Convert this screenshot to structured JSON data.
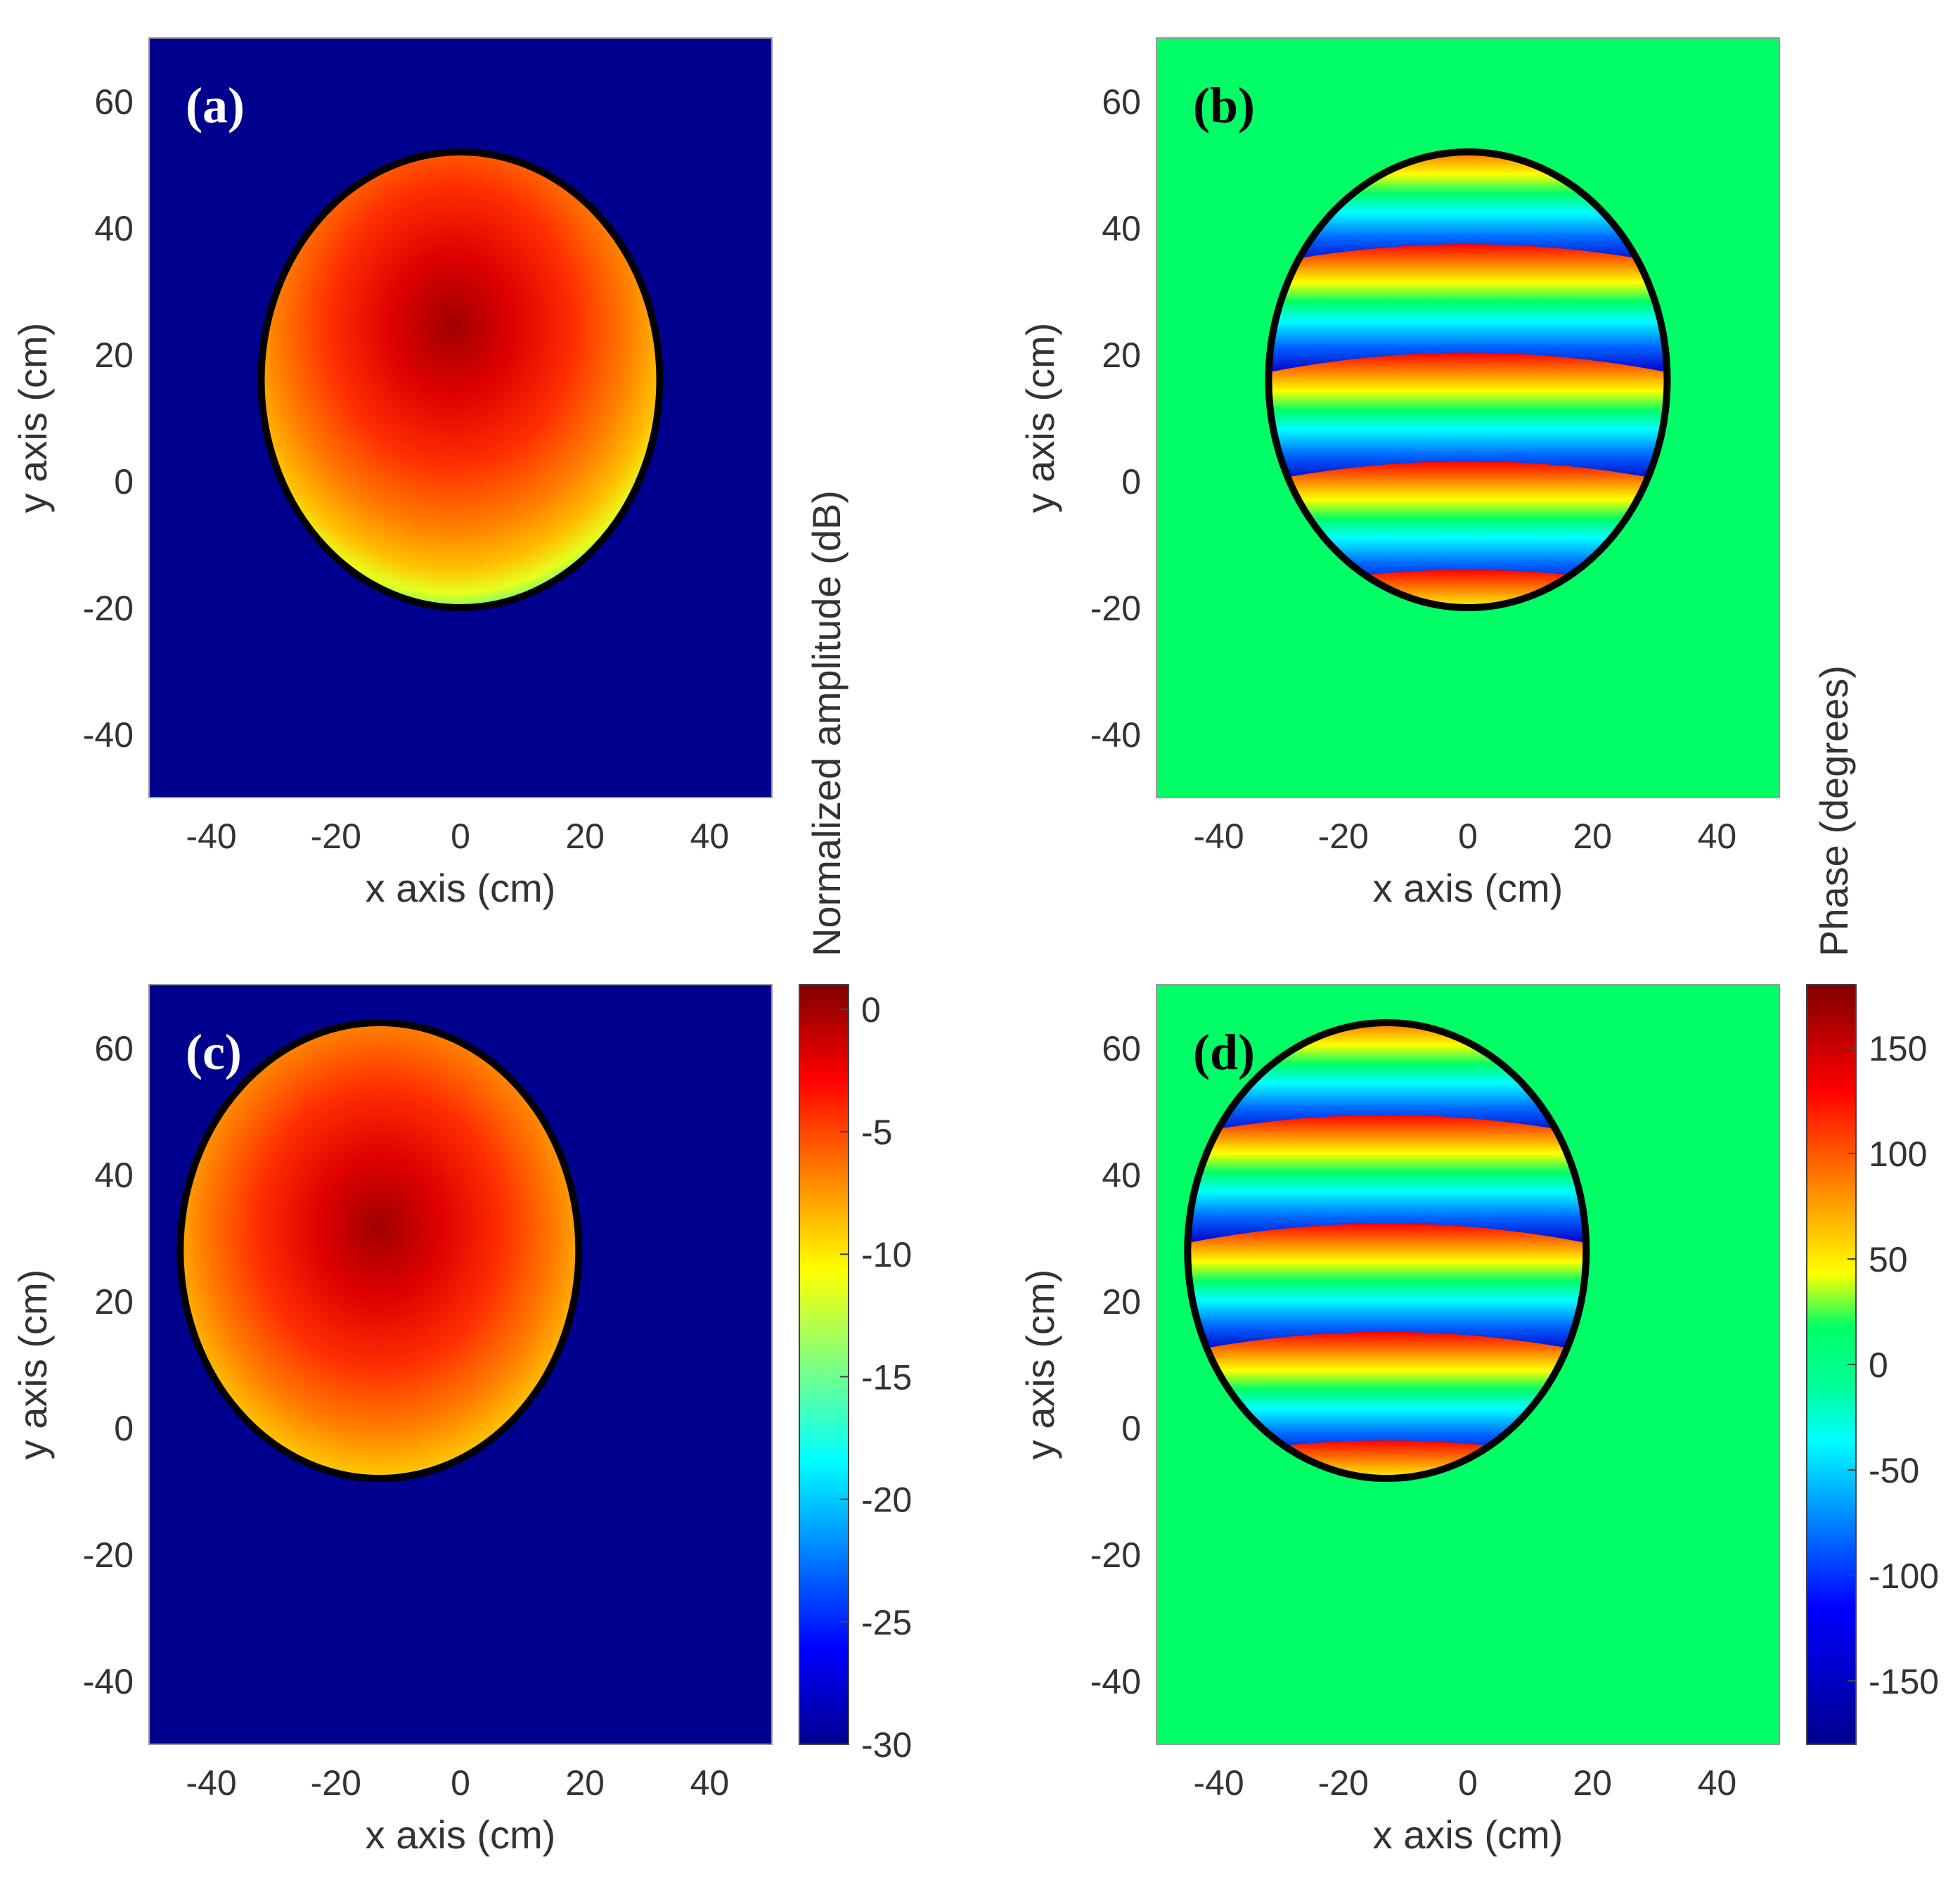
{
  "figure": {
    "panels": [
      {
        "id": "a",
        "label": "(a)",
        "quantity": "amplitude",
        "cx": 0,
        "cy": 16,
        "r": 32,
        "ry": 36,
        "xlabel": "x axis (cm)",
        "ylabel": "y axis (cm)"
      },
      {
        "id": "b",
        "label": "(b)",
        "quantity": "phase",
        "cx": 0,
        "cy": 16,
        "r": 32,
        "ry": 36,
        "xlabel": "x axis (cm)",
        "ylabel": "y axis (cm)"
      },
      {
        "id": "c",
        "label": "(c)",
        "quantity": "amplitude",
        "cx": -13,
        "cy": 28,
        "r": 32,
        "ry": 36,
        "xlabel": "x axis (cm)",
        "ylabel": "y axis (cm)"
      },
      {
        "id": "d",
        "label": "(d)",
        "quantity": "phase",
        "cx": -13,
        "cy": 28,
        "r": 32,
        "ry": 36,
        "xlabel": "x axis (cm)",
        "ylabel": "y axis (cm)"
      }
    ],
    "colorbars": {
      "amplitude": {
        "label": "Normalized amplitude (dB)",
        "range": [
          -30,
          1
        ],
        "ticks": [
          "0",
          "-5",
          "-10",
          "-15",
          "-20",
          "-25",
          "-30"
        ],
        "tick_values": [
          0,
          -5,
          -10,
          -15,
          -20,
          -25,
          -30
        ]
      },
      "phase": {
        "label": "Phase (degrees)",
        "range": [
          -180,
          180
        ],
        "ticks": [
          "150",
          "100",
          "50",
          "0",
          "-50",
          "-100",
          "-150"
        ],
        "tick_values": [
          150,
          100,
          50,
          0,
          -50,
          -100,
          -150
        ]
      }
    }
  },
  "chart_data": {
    "type": "heatmap",
    "title": "",
    "xlabel": "x axis (cm)",
    "ylabel": "y axis (cm)",
    "xlim": [
      -50,
      50
    ],
    "ylim": [
      -50,
      70
    ],
    "xticks": [
      -40,
      -20,
      0,
      20,
      40
    ],
    "yticks": [
      -40,
      -20,
      0,
      20,
      40,
      60
    ],
    "panels": [
      {
        "label": "(a)",
        "quantity": "Normalized amplitude (dB)",
        "aperture_center_cm": [
          0,
          16
        ],
        "peak_dB": 0,
        "peak_location_cm": [
          0,
          20
        ],
        "background_dB": -30
      },
      {
        "label": "(b)",
        "quantity": "Phase (degrees)",
        "aperture_center_cm": [
          0,
          16
        ],
        "background_deg": 0,
        "phase_wraps": "horizontal bands"
      },
      {
        "label": "(c)",
        "quantity": "Normalized amplitude (dB)",
        "aperture_center_cm": [
          -13,
          28
        ],
        "peak_dB": 0,
        "peak_location_cm": [
          -13,
          28
        ],
        "background_dB": -30
      },
      {
        "label": "(d)",
        "quantity": "Phase (degrees)",
        "aperture_center_cm": [
          -13,
          28
        ],
        "background_deg": 0,
        "phase_wraps": "horizontal bands"
      }
    ]
  }
}
